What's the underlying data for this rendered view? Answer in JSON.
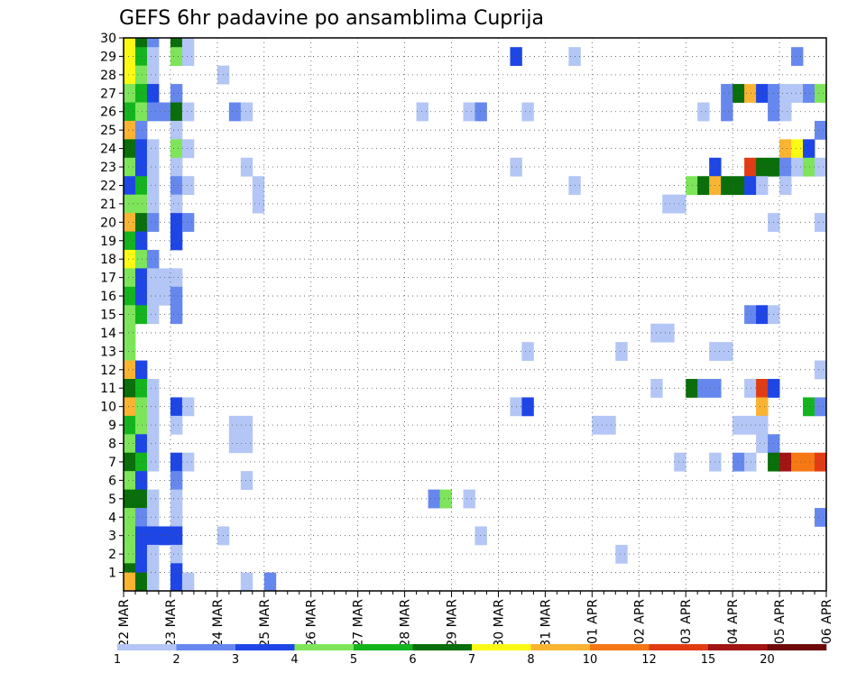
{
  "chart_data": {
    "type": "heatmap",
    "title": "GEFS 6hr padavine po ansamblima Cuprija",
    "xlabel": "",
    "ylabel": "",
    "x_tick_labels": [
      "22 MAR",
      "23 MAR",
      "24 MAR",
      "25 MAR",
      "26 MAR",
      "27 MAR",
      "28 MAR",
      "29 MAR",
      "30 MAR",
      "31 MAR",
      "01 APR",
      "02 APR",
      "03 APR",
      "04 APR",
      "05 APR",
      "06 APR"
    ],
    "y_tick_labels": [
      "1",
      "2",
      "3",
      "4",
      "5",
      "6",
      "7",
      "8",
      "9",
      "10",
      "11",
      "12",
      "13",
      "14",
      "15",
      "16",
      "17",
      "18",
      "19",
      "20",
      "21",
      "22",
      "23",
      "24",
      "25",
      "26",
      "27",
      "28",
      "29",
      "30"
    ],
    "ylim": [
      0,
      30
    ],
    "time_steps_per_day": 4,
    "grid": "dotted",
    "colorbar": {
      "bounds": [
        "1",
        "2",
        "3",
        "4",
        "5",
        "6",
        "7",
        "8",
        "10",
        "12",
        "15",
        "20"
      ],
      "colors": [
        "#b3c6f5",
        "#6688ee",
        "#1e46e6",
        "#7ee55a",
        "#14b41e",
        "#0a6e0a",
        "#fafa14",
        "#fab432",
        "#f57814",
        "#e13c14",
        "#a01414",
        "#6e0a0a"
      ]
    },
    "legend_placement": "bottom",
    "cells": [
      [
        0,
        30,
        6
      ],
      [
        1,
        30,
        5
      ],
      [
        2,
        30,
        1
      ],
      [
        4,
        30,
        5
      ],
      [
        5,
        30,
        0
      ],
      [
        0,
        29,
        6
      ],
      [
        1,
        29,
        4
      ],
      [
        2,
        29,
        0
      ],
      [
        4,
        29,
        3
      ],
      [
        5,
        29,
        0
      ],
      [
        33,
        29,
        2
      ],
      [
        38,
        29,
        0
      ],
      [
        57,
        29,
        1
      ],
      [
        0,
        28,
        6
      ],
      [
        1,
        28,
        3
      ],
      [
        2,
        28,
        0
      ],
      [
        8,
        28,
        0
      ],
      [
        0,
        27,
        3
      ],
      [
        1,
        27,
        4
      ],
      [
        2,
        27,
        2
      ],
      [
        4,
        27,
        1
      ],
      [
        51,
        27,
        1
      ],
      [
        52,
        27,
        5
      ],
      [
        53,
        27,
        7
      ],
      [
        54,
        27,
        2
      ],
      [
        55,
        27,
        1
      ],
      [
        56,
        27,
        0
      ],
      [
        57,
        27,
        0
      ],
      [
        58,
        27,
        1
      ],
      [
        59,
        27,
        3
      ],
      [
        0,
        26,
        4
      ],
      [
        1,
        26,
        3
      ],
      [
        2,
        26,
        1
      ],
      [
        3,
        26,
        1
      ],
      [
        4,
        26,
        5
      ],
      [
        5,
        26,
        0
      ],
      [
        9,
        26,
        1
      ],
      [
        10,
        26,
        0
      ],
      [
        25,
        26,
        0
      ],
      [
        29,
        26,
        0
      ],
      [
        30,
        26,
        1
      ],
      [
        34,
        26,
        0
      ],
      [
        49,
        26,
        0
      ],
      [
        51,
        26,
        1
      ],
      [
        55,
        26,
        1
      ],
      [
        56,
        26,
        0
      ],
      [
        0,
        25,
        7
      ],
      [
        1,
        25,
        1
      ],
      [
        4,
        25,
        0
      ],
      [
        59,
        25,
        1
      ],
      [
        0,
        24,
        5
      ],
      [
        1,
        24,
        2
      ],
      [
        2,
        24,
        0
      ],
      [
        4,
        24,
        3
      ],
      [
        5,
        24,
        0
      ],
      [
        56,
        24,
        7
      ],
      [
        57,
        24,
        6
      ],
      [
        58,
        24,
        2
      ],
      [
        0,
        23,
        3
      ],
      [
        1,
        23,
        2
      ],
      [
        2,
        23,
        0
      ],
      [
        4,
        23,
        0
      ],
      [
        10,
        23,
        0
      ],
      [
        33,
        23,
        0
      ],
      [
        50,
        23,
        2
      ],
      [
        53,
        23,
        9
      ],
      [
        54,
        23,
        5
      ],
      [
        55,
        23,
        5
      ],
      [
        56,
        23,
        1
      ],
      [
        57,
        23,
        0
      ],
      [
        58,
        23,
        3
      ],
      [
        59,
        23,
        0
      ],
      [
        0,
        22,
        2
      ],
      [
        1,
        22,
        4
      ],
      [
        2,
        22,
        0
      ],
      [
        4,
        22,
        1
      ],
      [
        5,
        22,
        0
      ],
      [
        11,
        22,
        0
      ],
      [
        38,
        22,
        0
      ],
      [
        48,
        22,
        3
      ],
      [
        49,
        22,
        5
      ],
      [
        50,
        22,
        7
      ],
      [
        51,
        22,
        5
      ],
      [
        52,
        22,
        5
      ],
      [
        53,
        22,
        2
      ],
      [
        54,
        22,
        0
      ],
      [
        56,
        22,
        0
      ],
      [
        0,
        21,
        3
      ],
      [
        1,
        21,
        3
      ],
      [
        2,
        21,
        0
      ],
      [
        4,
        21,
        0
      ],
      [
        11,
        21,
        0
      ],
      [
        46,
        21,
        0
      ],
      [
        47,
        21,
        0
      ],
      [
        0,
        20,
        7
      ],
      [
        1,
        20,
        5
      ],
      [
        2,
        20,
        1
      ],
      [
        4,
        20,
        2
      ],
      [
        5,
        20,
        1
      ],
      [
        55,
        20,
        0
      ],
      [
        59,
        20,
        0
      ],
      [
        0,
        19,
        4
      ],
      [
        1,
        19,
        2
      ],
      [
        4,
        19,
        2
      ],
      [
        0,
        18,
        6
      ],
      [
        1,
        18,
        3
      ],
      [
        2,
        18,
        1
      ],
      [
        0,
        17,
        3
      ],
      [
        1,
        17,
        2
      ],
      [
        2,
        17,
        0
      ],
      [
        3,
        17,
        0
      ],
      [
        4,
        17,
        0
      ],
      [
        0,
        16,
        4
      ],
      [
        1,
        16,
        2
      ],
      [
        2,
        16,
        0
      ],
      [
        3,
        16,
        0
      ],
      [
        4,
        16,
        1
      ],
      [
        0,
        15,
        3
      ],
      [
        1,
        15,
        4
      ],
      [
        2,
        15,
        0
      ],
      [
        4,
        15,
        1
      ],
      [
        53,
        15,
        1
      ],
      [
        54,
        15,
        2
      ],
      [
        55,
        15,
        0
      ],
      [
        0,
        14,
        3
      ],
      [
        45,
        14,
        0
      ],
      [
        46,
        14,
        0
      ],
      [
        0,
        13,
        3
      ],
      [
        34,
        13,
        0
      ],
      [
        42,
        13,
        0
      ],
      [
        50,
        13,
        0
      ],
      [
        51,
        13,
        0
      ],
      [
        0,
        12,
        7
      ],
      [
        1,
        12,
        2
      ],
      [
        59,
        12,
        0
      ],
      [
        0,
        11,
        5
      ],
      [
        1,
        11,
        4
      ],
      [
        2,
        11,
        0
      ],
      [
        45,
        11,
        0
      ],
      [
        48,
        11,
        5
      ],
      [
        49,
        11,
        1
      ],
      [
        50,
        11,
        1
      ],
      [
        53,
        11,
        0
      ],
      [
        54,
        11,
        9
      ],
      [
        55,
        11,
        2
      ],
      [
        0,
        10,
        7
      ],
      [
        1,
        10,
        3
      ],
      [
        2,
        10,
        0
      ],
      [
        4,
        10,
        2
      ],
      [
        5,
        10,
        0
      ],
      [
        33,
        10,
        0
      ],
      [
        34,
        10,
        2
      ],
      [
        54,
        10,
        7
      ],
      [
        58,
        10,
        4
      ],
      [
        59,
        10,
        1
      ],
      [
        0,
        9,
        4
      ],
      [
        1,
        9,
        3
      ],
      [
        2,
        9,
        0
      ],
      [
        4,
        9,
        0
      ],
      [
        9,
        9,
        0
      ],
      [
        10,
        9,
        0
      ],
      [
        40,
        9,
        0
      ],
      [
        41,
        9,
        0
      ],
      [
        52,
        9,
        0
      ],
      [
        53,
        9,
        0
      ],
      [
        54,
        9,
        0
      ],
      [
        0,
        8,
        3
      ],
      [
        1,
        8,
        2
      ],
      [
        2,
        8,
        0
      ],
      [
        9,
        8,
        0
      ],
      [
        10,
        8,
        0
      ],
      [
        54,
        8,
        0
      ],
      [
        55,
        8,
        1
      ],
      [
        0,
        7,
        5
      ],
      [
        1,
        7,
        4
      ],
      [
        2,
        7,
        0
      ],
      [
        4,
        7,
        2
      ],
      [
        5,
        7,
        0
      ],
      [
        47,
        7,
        0
      ],
      [
        50,
        7,
        0
      ],
      [
        52,
        7,
        1
      ],
      [
        53,
        7,
        0
      ],
      [
        55,
        7,
        5
      ],
      [
        56,
        7,
        10
      ],
      [
        57,
        7,
        8
      ],
      [
        58,
        7,
        8
      ],
      [
        59,
        7,
        9
      ],
      [
        0,
        6,
        3
      ],
      [
        1,
        6,
        2
      ],
      [
        4,
        6,
        1
      ],
      [
        10,
        6,
        0
      ],
      [
        0,
        5,
        5
      ],
      [
        1,
        5,
        5
      ],
      [
        2,
        5,
        0
      ],
      [
        4,
        5,
        0
      ],
      [
        26,
        5,
        1
      ],
      [
        27,
        5,
        3
      ],
      [
        29,
        5,
        0
      ],
      [
        0,
        4,
        3
      ],
      [
        1,
        4,
        1
      ],
      [
        2,
        4,
        0
      ],
      [
        4,
        4,
        0
      ],
      [
        59,
        4,
        1
      ],
      [
        0,
        3,
        3
      ],
      [
        1,
        3,
        2
      ],
      [
        2,
        3,
        2
      ],
      [
        3,
        3,
        2
      ],
      [
        4,
        3,
        2
      ],
      [
        8,
        3,
        0
      ],
      [
        30,
        3,
        0
      ],
      [
        0,
        2,
        3
      ],
      [
        1,
        2,
        2
      ],
      [
        2,
        2,
        0
      ],
      [
        4,
        2,
        0
      ],
      [
        42,
        2,
        0
      ],
      [
        0,
        1,
        5
      ],
      [
        1,
        1,
        2
      ],
      [
        2,
        1,
        0
      ],
      [
        4,
        1,
        2
      ],
      [
        0,
        0.5,
        7
      ],
      [
        1,
        0.5,
        5
      ],
      [
        2,
        0.5,
        0
      ],
      [
        4,
        0.5,
        2
      ],
      [
        5,
        0.5,
        0
      ],
      [
        10,
        0.5,
        0
      ],
      [
        12,
        0.5,
        1
      ]
    ]
  }
}
